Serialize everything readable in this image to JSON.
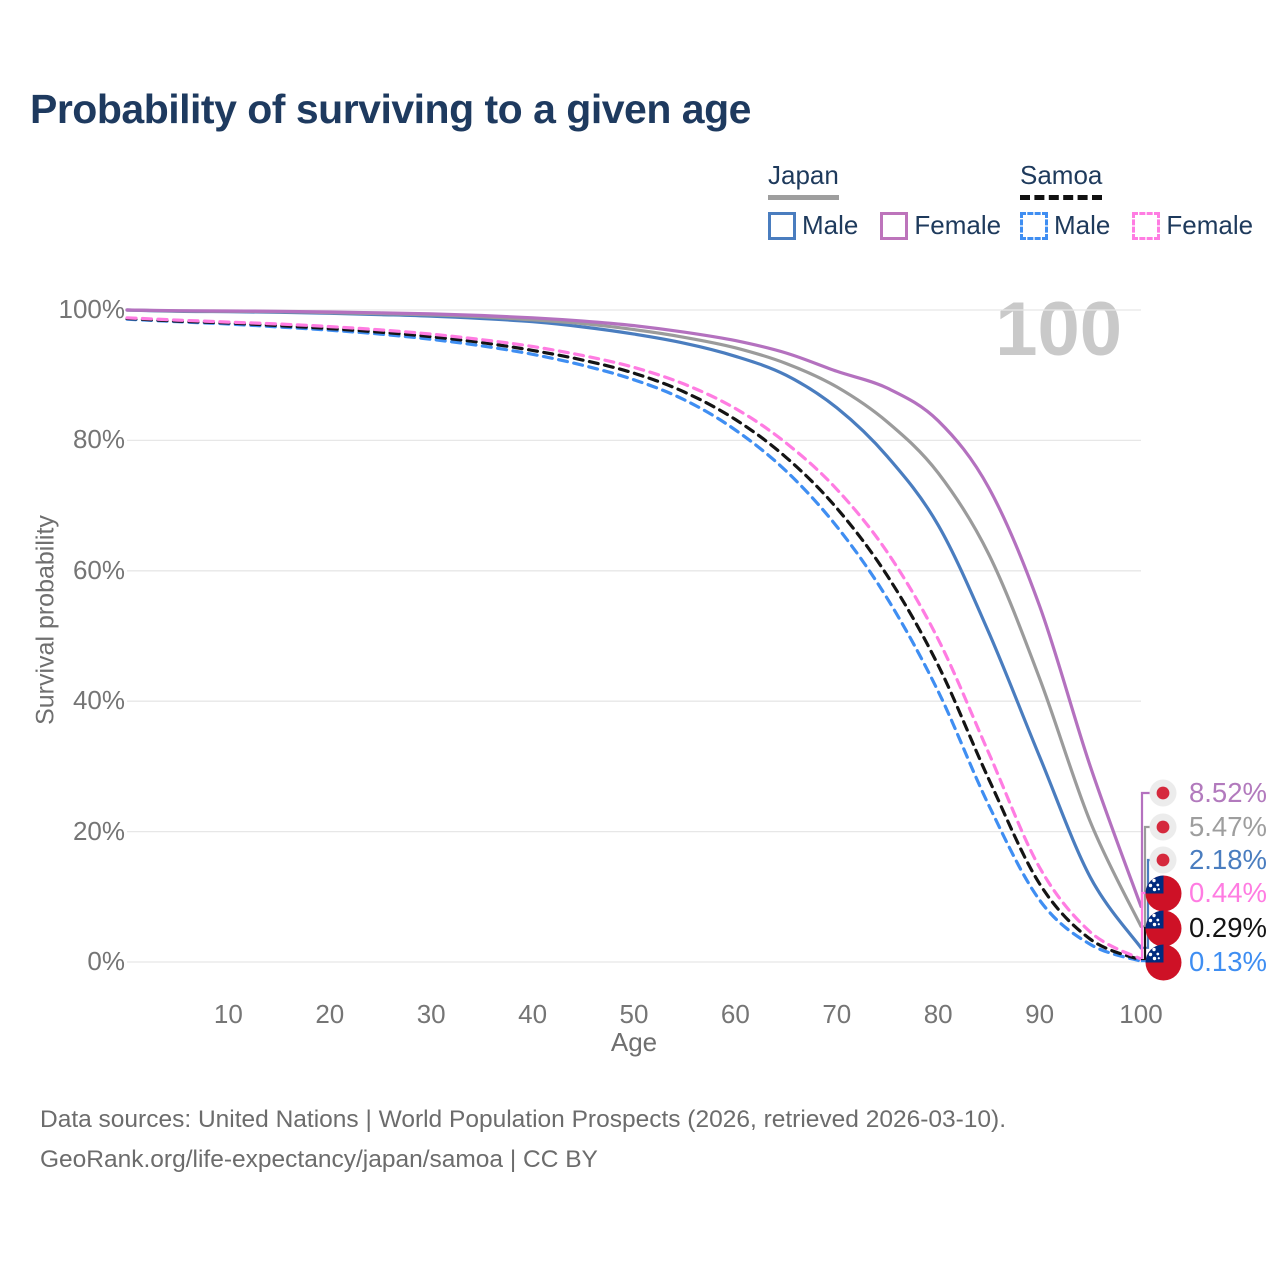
{
  "title": "Probability of surviving to a given age",
  "watermark": "100",
  "legend": {
    "groups": [
      {
        "country": "Japan",
        "underline_style": "solid",
        "underline_color": "#9e9e9e",
        "items": [
          {
            "label": "Male",
            "color": "#4a7dbf",
            "border_style": "solid"
          },
          {
            "label": "Female",
            "color": "#bd74bb",
            "border_style": "solid"
          }
        ]
      },
      {
        "country": "Samoa",
        "underline_style": "dashed",
        "underline_color": "#111111",
        "items": [
          {
            "label": "Male",
            "color": "#3f8ef2",
            "border_style": "dashed"
          },
          {
            "label": "Female",
            "color": "#ff7ce2",
            "border_style": "dashed"
          }
        ]
      }
    ]
  },
  "chart_data": {
    "type": "line",
    "title": "Probability of surviving to a given age",
    "xlabel": "Age",
    "ylabel": "Survival probability",
    "xlim": [
      0,
      100
    ],
    "ylim": [
      0,
      100
    ],
    "grid": true,
    "legend_position": "top-right",
    "xticks": [
      10,
      20,
      30,
      40,
      50,
      60,
      70,
      80,
      90,
      100
    ],
    "yticks": [
      {
        "value": 0,
        "label": "0%"
      },
      {
        "value": 20,
        "label": "20%"
      },
      {
        "value": 40,
        "label": "40%"
      },
      {
        "value": 60,
        "label": "60%"
      },
      {
        "value": 80,
        "label": "80%"
      },
      {
        "value": 100,
        "label": "100%"
      }
    ],
    "series": [
      {
        "name": "Samoa Male",
        "country": "samoa",
        "sex": "male",
        "color": "#3f8ef2",
        "dashed": true,
        "end_label": {
          "text": "0.13%",
          "color": "#3f8ef2"
        },
        "points": [
          [
            0,
            98.6
          ],
          [
            5,
            98.2
          ],
          [
            10,
            97.85
          ],
          [
            15,
            97.4
          ],
          [
            20,
            96.9
          ],
          [
            25,
            96.3
          ],
          [
            30,
            95.5
          ],
          [
            35,
            94.5
          ],
          [
            40,
            93.2
          ],
          [
            45,
            91.5
          ],
          [
            50,
            89.3
          ],
          [
            55,
            86.2
          ],
          [
            60,
            81.6
          ],
          [
            65,
            75.3
          ],
          [
            70,
            66.8
          ],
          [
            75,
            55.7
          ],
          [
            80,
            41.5
          ],
          [
            85,
            24.0
          ],
          [
            90,
            9.5
          ],
          [
            95,
            2.7
          ],
          [
            100,
            0.13
          ]
        ]
      },
      {
        "name": "Samoa",
        "country": "samoa",
        "sex": "all",
        "color": "#141414",
        "dashed": true,
        "end_label": {
          "text": "0.29%",
          "color": "#141414"
        },
        "points": [
          [
            0,
            98.7
          ],
          [
            5,
            98.3
          ],
          [
            10,
            98.0
          ],
          [
            15,
            97.6
          ],
          [
            20,
            97.15
          ],
          [
            25,
            96.6
          ],
          [
            30,
            95.9
          ],
          [
            35,
            95.0
          ],
          [
            40,
            93.8
          ],
          [
            45,
            92.3
          ],
          [
            50,
            90.3
          ],
          [
            55,
            87.4
          ],
          [
            60,
            83.2
          ],
          [
            65,
            77.4
          ],
          [
            70,
            69.6
          ],
          [
            75,
            59.2
          ],
          [
            80,
            45.5
          ],
          [
            85,
            28.0
          ],
          [
            90,
            12.0
          ],
          [
            95,
            3.5
          ],
          [
            100,
            0.29
          ]
        ]
      },
      {
        "name": "Samoa Female",
        "country": "samoa",
        "sex": "female",
        "color": "#ff7ce2",
        "dashed": true,
        "end_label": {
          "text": "0.44%",
          "color": "#ff7ce2"
        },
        "points": [
          [
            0,
            98.8
          ],
          [
            5,
            98.45
          ],
          [
            10,
            98.15
          ],
          [
            15,
            97.85
          ],
          [
            20,
            97.45
          ],
          [
            25,
            96.95
          ],
          [
            30,
            96.3
          ],
          [
            35,
            95.45
          ],
          [
            40,
            94.4
          ],
          [
            45,
            93.0
          ],
          [
            50,
            91.2
          ],
          [
            55,
            88.6
          ],
          [
            60,
            84.9
          ],
          [
            65,
            79.6
          ],
          [
            70,
            72.5
          ],
          [
            75,
            62.8
          ],
          [
            80,
            49.5
          ],
          [
            85,
            32.0
          ],
          [
            90,
            14.5
          ],
          [
            95,
            4.6
          ],
          [
            100,
            0.44
          ]
        ]
      },
      {
        "name": "Japan Male",
        "country": "japan",
        "sex": "male",
        "color": "#4a7dbf",
        "dashed": false,
        "end_label": {
          "text": "2.18%",
          "color": "#4a7dbf"
        },
        "points": [
          [
            0,
            100
          ],
          [
            5,
            99.8
          ],
          [
            10,
            99.75
          ],
          [
            15,
            99.65
          ],
          [
            20,
            99.5
          ],
          [
            25,
            99.3
          ],
          [
            30,
            99.05
          ],
          [
            35,
            98.7
          ],
          [
            40,
            98.2
          ],
          [
            45,
            97.4
          ],
          [
            50,
            96.3
          ],
          [
            55,
            94.9
          ],
          [
            60,
            92.9
          ],
          [
            65,
            90.0
          ],
          [
            70,
            85.0
          ],
          [
            75,
            77.5
          ],
          [
            80,
            67.0
          ],
          [
            85,
            50.5
          ],
          [
            90,
            31.5
          ],
          [
            95,
            13.0
          ],
          [
            100,
            2.18
          ]
        ]
      },
      {
        "name": "Japan",
        "country": "japan",
        "sex": "all",
        "color": "#9b9b9b",
        "dashed": false,
        "end_label": {
          "text": "5.47%",
          "color": "#9e9e9e"
        },
        "points": [
          [
            0,
            100
          ],
          [
            5,
            99.85
          ],
          [
            10,
            99.8
          ],
          [
            15,
            99.75
          ],
          [
            20,
            99.6
          ],
          [
            25,
            99.45
          ],
          [
            30,
            99.25
          ],
          [
            35,
            98.95
          ],
          [
            40,
            98.5
          ],
          [
            45,
            97.9
          ],
          [
            50,
            97.0
          ],
          [
            55,
            95.8
          ],
          [
            60,
            94.2
          ],
          [
            65,
            91.8
          ],
          [
            70,
            88.2
          ],
          [
            75,
            82.8
          ],
          [
            80,
            75.0
          ],
          [
            85,
            62.5
          ],
          [
            90,
            43.5
          ],
          [
            95,
            21.5
          ],
          [
            100,
            5.47
          ]
        ]
      },
      {
        "name": "Japan Female",
        "country": "japan",
        "sex": "female",
        "color": "#b471bf",
        "dashed": false,
        "end_label": {
          "text": "8.52%",
          "color": "#b27abd"
        },
        "points": [
          [
            0,
            100
          ],
          [
            5,
            99.9
          ],
          [
            10,
            99.85
          ],
          [
            15,
            99.8
          ],
          [
            20,
            99.7
          ],
          [
            25,
            99.55
          ],
          [
            30,
            99.4
          ],
          [
            35,
            99.15
          ],
          [
            40,
            98.8
          ],
          [
            45,
            98.3
          ],
          [
            50,
            97.6
          ],
          [
            55,
            96.6
          ],
          [
            60,
            95.3
          ],
          [
            65,
            93.4
          ],
          [
            70,
            90.6
          ],
          [
            75,
            88.0
          ],
          [
            80,
            83.0
          ],
          [
            85,
            72.7
          ],
          [
            90,
            54.6
          ],
          [
            95,
            30.0
          ],
          [
            100,
            8.52
          ]
        ]
      }
    ]
  },
  "footer": {
    "line1": "Data sources: United Nations | World Population Prospects (2026, retrieved 2026-03-10).",
    "line2": "GeoRank.org/life-expectancy/japan/samoa | CC BY"
  }
}
